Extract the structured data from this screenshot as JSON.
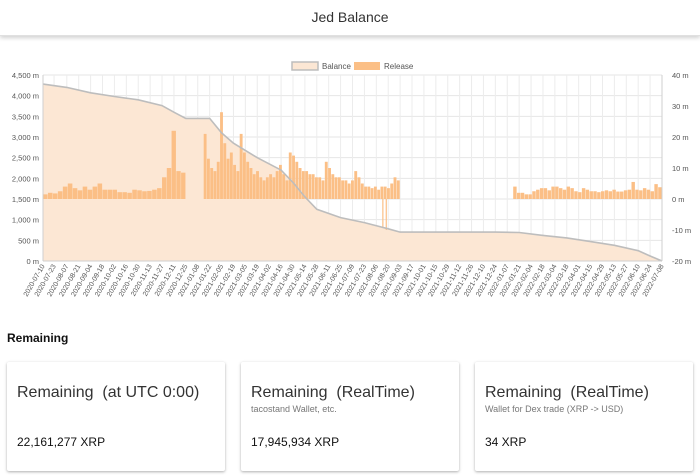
{
  "header": {
    "title": "Jed Balance"
  },
  "chart_data": {
    "type": "bar+area",
    "legend": [
      "Balance",
      "Release"
    ],
    "legend_placement": "top-center",
    "colors": {
      "balance_fill": "#fce7d4",
      "balance_line": "#bdbdbd",
      "release": "#fbbf86"
    },
    "y_left": {
      "ticks": [
        "0 m",
        "500 m",
        "1,000 m",
        "1,500 m",
        "2,000 m",
        "2,500 m",
        "3,000 m",
        "3,500 m",
        "4,000 m",
        "4,500 m"
      ],
      "range": [
        0,
        4500
      ]
    },
    "y_right": {
      "ticks": [
        "-20 m",
        "-10 m",
        "0 m",
        "10 m",
        "20 m",
        "30 m",
        "40 m"
      ],
      "range": [
        -20,
        40
      ]
    },
    "x_labels": [
      "2020-07-10",
      "2020-07-23",
      "2020-08-07",
      "2020-08-21",
      "2020-09-04",
      "2020-09-18",
      "2020-10-02",
      "2020-10-16",
      "2020-10-30",
      "2020-11-13",
      "2020-11-27",
      "2020-12-11",
      "2020-12-25",
      "2021-01-08",
      "2021-01-22",
      "2021-02-05",
      "2021-02-19",
      "2021-03-05",
      "2021-03-19",
      "2021-04-02",
      "2021-04-16",
      "2021-04-30",
      "2021-05-14",
      "2021-05-28",
      "2021-06-11",
      "2021-06-25",
      "2021-07-09",
      "2021-07-23",
      "2021-08-06",
      "2021-08-20",
      "2021-09-03",
      "2021-09-17",
      "2021-10-01",
      "2021-10-15",
      "2021-10-29",
      "2021-11-12",
      "2021-11-26",
      "2021-12-10",
      "2021-12-24",
      "2022-01-07",
      "2022-01-21",
      "2022-02-04",
      "2022-02-18",
      "2022-03-04",
      "2022-03-18",
      "2022-04-01",
      "2022-04-15",
      "2022-04-29",
      "2022-05-13",
      "2022-05-27",
      "2022-06-10",
      "2022-06-24",
      "2022-07-08"
    ],
    "balance_keypoints": [
      [
        "2020-07-10",
        4280
      ],
      [
        "2020-08-07",
        4200
      ],
      [
        "2020-09-04",
        4070
      ],
      [
        "2020-10-02",
        3980
      ],
      [
        "2020-10-30",
        3900
      ],
      [
        "2020-11-27",
        3760
      ],
      [
        "2020-12-11",
        3600
      ],
      [
        "2020-12-25",
        3450
      ],
      [
        "2021-01-22",
        3450
      ],
      [
        "2021-02-05",
        3100
      ],
      [
        "2021-02-19",
        2850
      ],
      [
        "2021-03-19",
        2500
      ],
      [
        "2021-04-16",
        2200
      ],
      [
        "2021-04-30",
        1900
      ],
      [
        "2021-05-14",
        1550
      ],
      [
        "2021-05-28",
        1250
      ],
      [
        "2021-06-25",
        1050
      ],
      [
        "2021-07-23",
        930
      ],
      [
        "2021-08-20",
        780
      ],
      [
        "2021-09-03",
        700
      ],
      [
        "2021-09-17",
        700
      ],
      [
        "2021-12-24",
        700
      ],
      [
        "2022-01-21",
        690
      ],
      [
        "2022-02-18",
        620
      ],
      [
        "2022-03-18",
        560
      ],
      [
        "2022-04-15",
        470
      ],
      [
        "2022-05-13",
        380
      ],
      [
        "2022-06-10",
        250
      ],
      [
        "2022-06-24",
        120
      ],
      [
        "2022-07-08",
        0
      ]
    ],
    "release_series": [
      {
        "from": "2020-07-10",
        "to": "2020-11-27",
        "values": [
          1.5,
          2,
          1.8,
          2.5,
          4,
          5,
          3.5,
          2.8,
          4,
          3,
          4,
          5,
          3,
          3,
          3,
          2.2,
          2.2,
          2,
          3,
          2.8,
          2.5,
          2.6,
          3,
          3.5
        ]
      },
      {
        "from": "2020-11-27",
        "to": "2020-12-25",
        "values": [
          7,
          10,
          22,
          9,
          8.5
        ]
      },
      {
        "from": "2021-01-15",
        "to": "2021-09-03",
        "values": [
          21,
          13,
          10,
          9,
          12,
          28,
          18,
          13,
          15,
          11,
          9,
          21,
          15,
          12,
          10,
          8,
          9,
          7,
          6,
          7,
          8,
          7,
          9,
          11,
          8,
          6,
          15,
          14,
          12,
          10,
          9,
          9,
          8,
          8,
          7,
          7,
          6,
          12,
          10,
          8,
          7,
          7,
          6,
          6,
          5,
          6,
          9,
          7,
          5,
          4,
          4,
          3.5,
          4,
          3,
          4,
          4,
          3.5,
          5,
          7,
          6
        ]
      },
      {
        "from": "2022-01-14",
        "to": "2022-07-08",
        "values": [
          4,
          2,
          2,
          1.5,
          1.5,
          2.5,
          3,
          3.5,
          3.5,
          2.8,
          4,
          4,
          3.5,
          3,
          4,
          3.5,
          2.5,
          2.2,
          3.5,
          3,
          2.5,
          2.5,
          2.2,
          2.5,
          2.8,
          2.5,
          3,
          2.4,
          2.4,
          2.8,
          3,
          5.5,
          3,
          2.8,
          3.5,
          3,
          2.5,
          4.8,
          3.8
        ]
      }
    ],
    "release_dips": [
      [
        "2021-08-13",
        -9
      ],
      [
        "2021-08-17",
        -10
      ]
    ]
  },
  "remaining": {
    "section_title": "Remaining",
    "cards": [
      {
        "title": "Remaining  (at UTC 0:00)",
        "subtitle": "",
        "value": "22,161,277 XRP"
      },
      {
        "title": "Remaining  (RealTime)",
        "subtitle": "tacostand Wallet, etc.",
        "value": "17,945,934 XRP"
      },
      {
        "title": "Remaining  (RealTime)",
        "subtitle": "Wallet for Dex trade (XRP -> USD)",
        "value": "34 XRP"
      }
    ]
  }
}
